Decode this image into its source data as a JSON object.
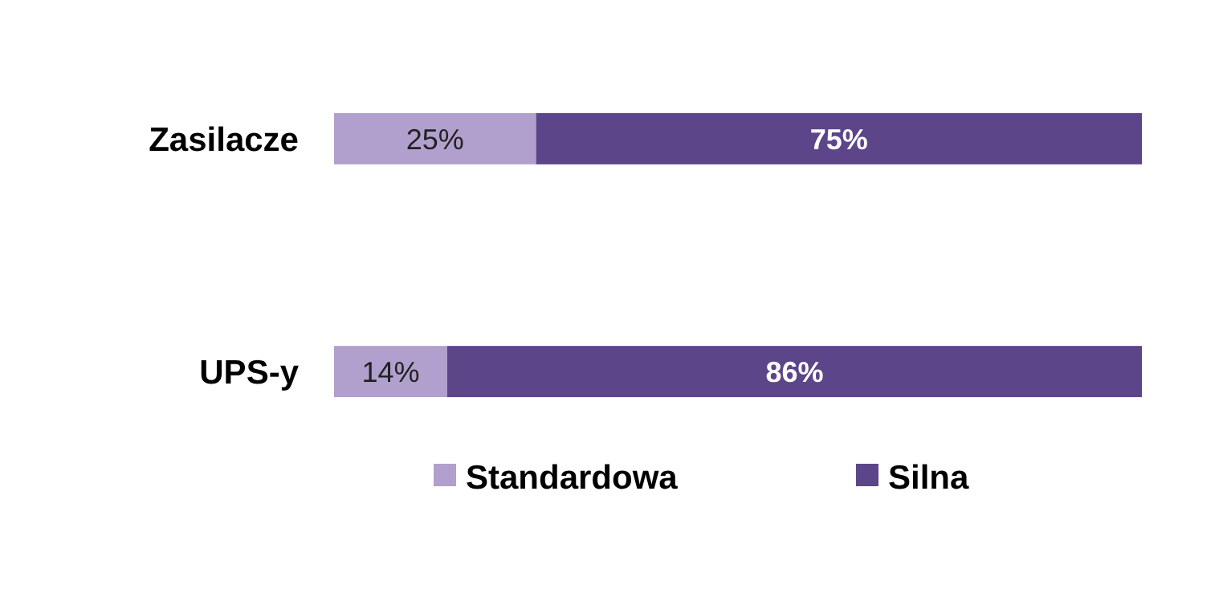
{
  "chart_data": {
    "type": "bar",
    "orientation": "horizontal",
    "stacked": true,
    "categories": [
      "Zasilacze",
      "UPS-y"
    ],
    "series": [
      {
        "name": "Standardowa",
        "color": "#b19fcd",
        "values": [
          25,
          14
        ],
        "value_labels": [
          "25%",
          "14%"
        ]
      },
      {
        "name": "Silna",
        "color": "#5c4689",
        "values": [
          75,
          86
        ],
        "value_labels": [
          "75%",
          "86%"
        ]
      }
    ],
    "legend": "bottom",
    "grid": false
  }
}
